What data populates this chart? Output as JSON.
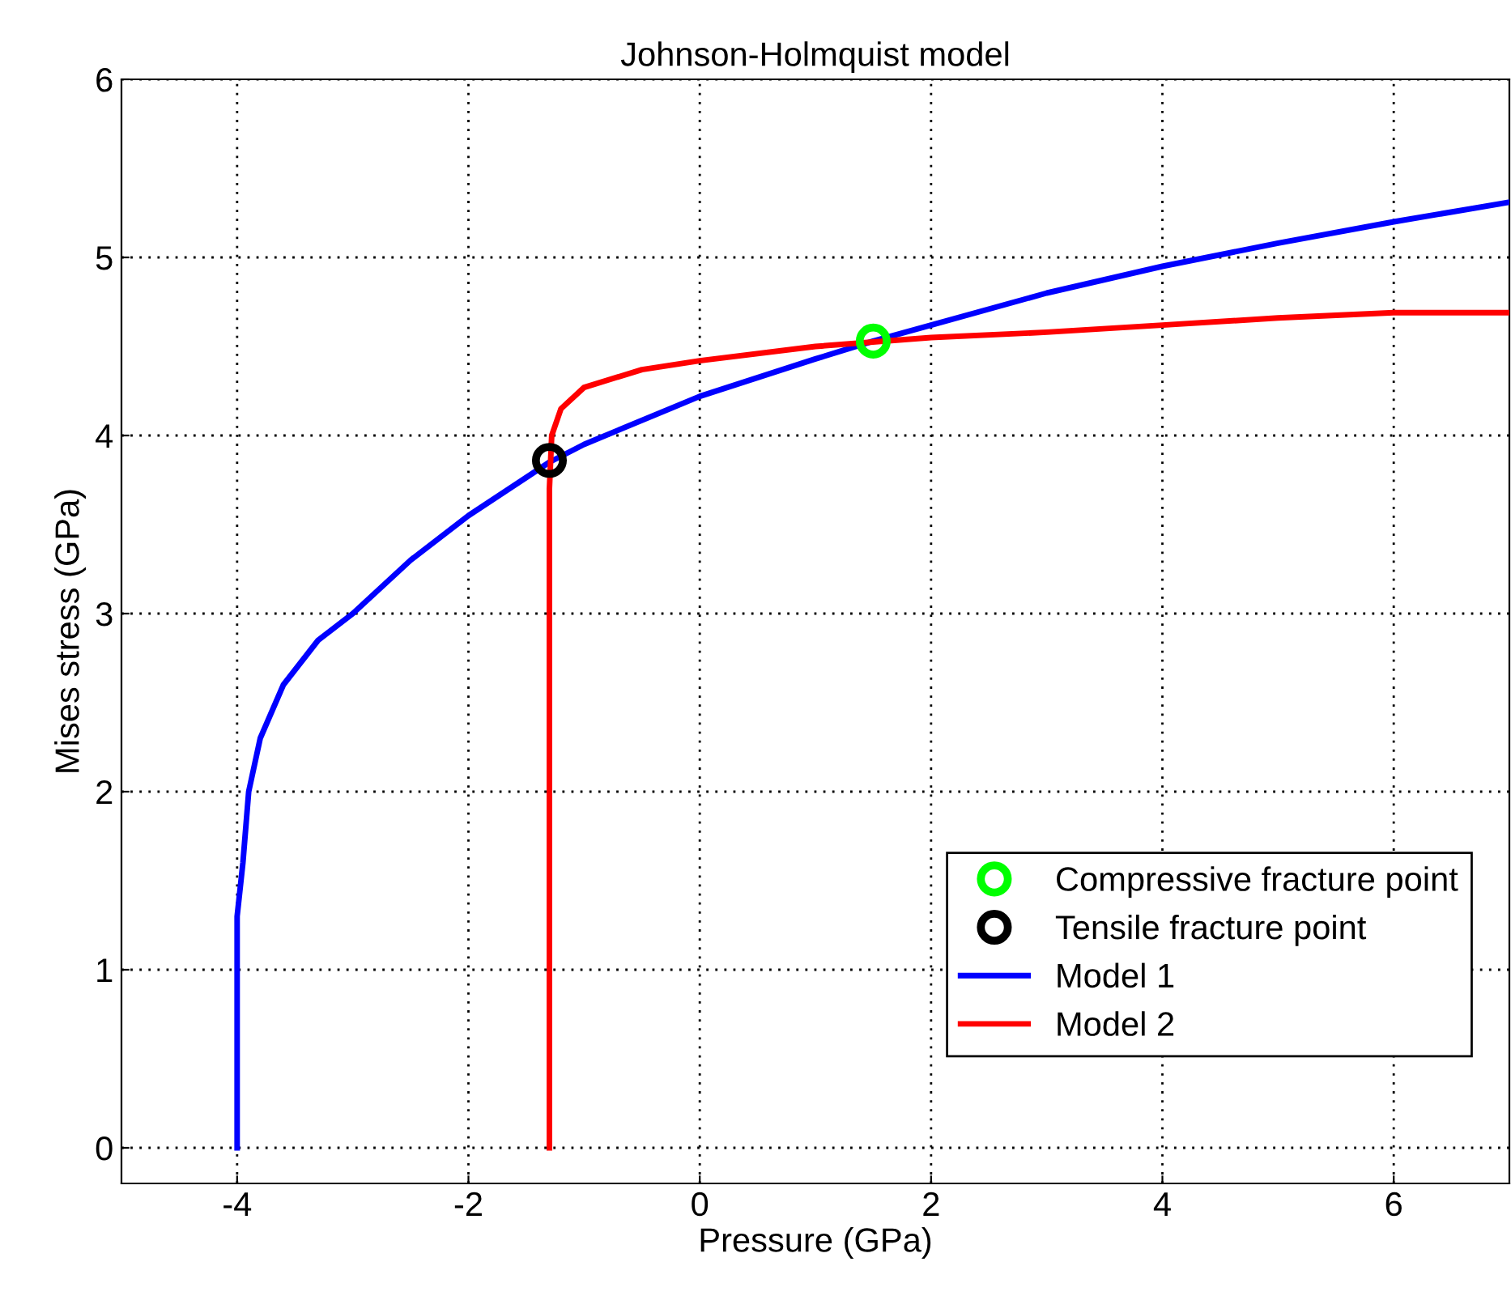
{
  "chart_data": {
    "type": "line",
    "title": "Johnson-Holmquist model",
    "xlabel": "Pressure (GPa)",
    "ylabel": "Mises stress (GPa)",
    "xlim": [
      -5,
      7
    ],
    "xticks": [
      -4,
      -2,
      0,
      2,
      4,
      6
    ],
    "ylim": [
      -0.2,
      6
    ],
    "yticks": [
      0,
      1,
      2,
      3,
      4,
      5,
      6
    ],
    "grid": true,
    "legend": "bottom right",
    "series": [
      {
        "name": "Compressive fracture point",
        "type": "scatter",
        "marker": "circle",
        "color": "#00ff00",
        "x": [
          1.5
        ],
        "values": [
          4.53
        ]
      },
      {
        "name": "Tensile fracture point",
        "type": "scatter",
        "marker": "circle",
        "color": "#000000",
        "x": [
          -1.3
        ],
        "values": [
          3.86
        ]
      },
      {
        "name": "Model 1",
        "color": "#0000ff",
        "x": [
          -4,
          -4,
          -3.95,
          -3.9,
          -3.8,
          -3.6,
          -3.3,
          -3,
          -2.5,
          -2,
          -1.3,
          -1,
          0,
          1,
          1.5,
          2,
          3,
          4,
          5,
          6,
          7
        ],
        "values": [
          0,
          1.3,
          1.6,
          2.0,
          2.3,
          2.6,
          2.85,
          3.0,
          3.3,
          3.55,
          3.85,
          3.95,
          4.22,
          4.43,
          4.53,
          4.62,
          4.8,
          4.95,
          5.08,
          5.2,
          5.31
        ]
      },
      {
        "name": "Model 2",
        "color": "#ff0000",
        "x": [
          -1.3,
          -1.3,
          -1.28,
          -1.2,
          -1,
          -0.5,
          0,
          1,
          2,
          3,
          4,
          5,
          6,
          7
        ],
        "values": [
          0,
          3.7,
          4.0,
          4.15,
          4.27,
          4.37,
          4.42,
          4.5,
          4.55,
          4.58,
          4.62,
          4.66,
          4.69,
          4.69
        ]
      }
    ]
  }
}
